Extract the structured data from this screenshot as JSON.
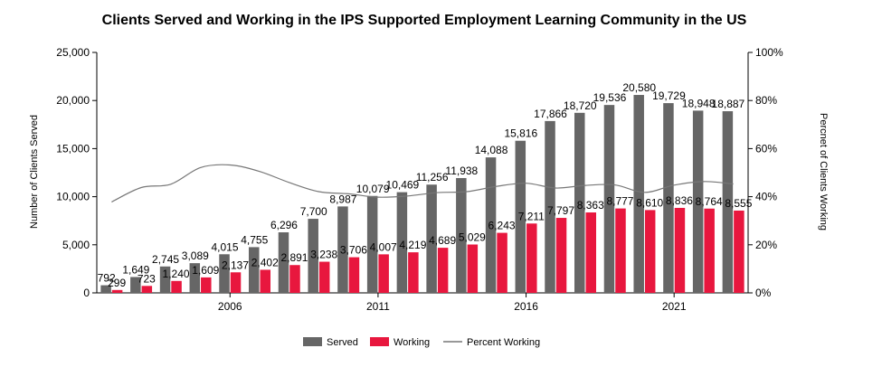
{
  "chart_data": {
    "type": "bar",
    "title": "Clients Served and Working in the IPS Supported Employment Learning Community in the US",
    "ylabel": "Number of Clients Served",
    "y2label": "Percnet of Clients Working",
    "ylim": [
      0,
      25000
    ],
    "y2lim": [
      0,
      100
    ],
    "yticks": [
      "0",
      "5,000",
      "10,000",
      "15,000",
      "20,000",
      "25,000"
    ],
    "y2ticks": [
      "0%",
      "20%",
      "40%",
      "60%",
      "80%",
      "100%"
    ],
    "x": [
      2002,
      2003,
      2004,
      2005,
      2006,
      2007,
      2008,
      2009,
      2010,
      2011,
      2012,
      2013,
      2014,
      2015,
      2016,
      2017,
      2018,
      2019,
      2020,
      2021,
      2022,
      2023
    ],
    "xtick_years": [
      2006,
      2011,
      2016,
      2021
    ],
    "legend_position": "bottom",
    "series": [
      {
        "name": "Served",
        "kind": "bar",
        "color": "#666666",
        "values": [
          792,
          1649,
          2745,
          3089,
          4015,
          4755,
          6296,
          7700,
          8987,
          10079,
          10469,
          11256,
          11938,
          14088,
          15816,
          17866,
          18720,
          19536,
          20580,
          19729,
          18948,
          18887
        ],
        "labels": [
          "792",
          "1,649",
          "2,745",
          "3,089",
          "4,015",
          "4,755",
          "6,296",
          "7,700",
          "8,987",
          "10,079",
          "10,469",
          "11,256",
          "11,938",
          "14,088",
          "15,816",
          "17,866",
          "18,720",
          "19,536",
          "20,580",
          "19,729",
          "18,948",
          "18,887"
        ]
      },
      {
        "name": "Working",
        "kind": "bar",
        "color": "#E8173E",
        "values": [
          299,
          723,
          1240,
          1609,
          2137,
          2402,
          2891,
          3238,
          3706,
          4007,
          4219,
          4689,
          5029,
          6243,
          7211,
          7797,
          8363,
          8777,
          8610,
          8836,
          8764,
          8555
        ],
        "labels": [
          "299",
          "723",
          "1,240",
          "1,609",
          "2,137",
          "2,402",
          "2,891",
          "3,238",
          "3,706",
          "4,007",
          "4,219",
          "4,689",
          "5,029",
          "6,243",
          "7,211",
          "7,797",
          "8,363",
          "8,777",
          "8,610",
          "8,836",
          "8,764",
          "8,555"
        ]
      },
      {
        "name": "Percent Working",
        "kind": "line",
        "axis": "secondary",
        "color": "#777777",
        "values": [
          37.8,
          43.8,
          45.2,
          52.1,
          53.2,
          50.5,
          45.9,
          42.1,
          41.2,
          39.8,
          40.3,
          41.7,
          42.1,
          44.3,
          45.6,
          43.6,
          44.7,
          44.9,
          41.8,
          44.8,
          46.3,
          45.3
        ]
      }
    ]
  }
}
